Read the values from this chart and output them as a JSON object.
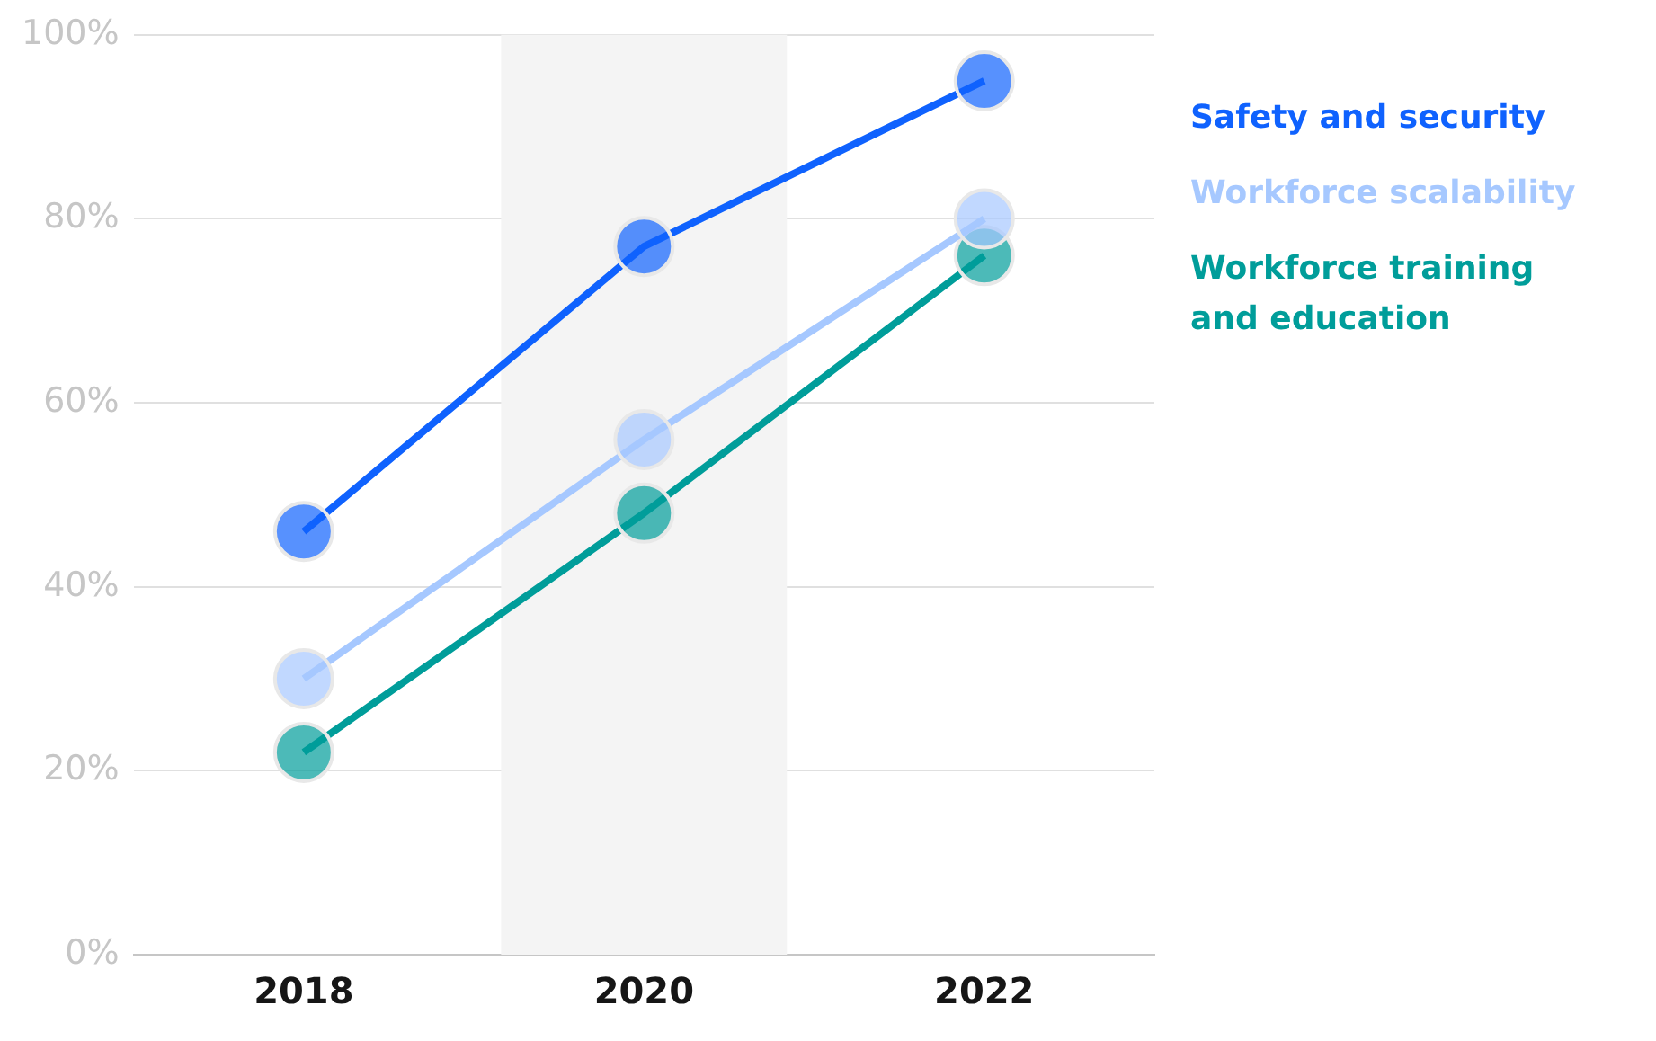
{
  "chart_data": {
    "type": "line",
    "categories": [
      "2018",
      "2020",
      "2022"
    ],
    "series": [
      {
        "name": "Safety and security",
        "color": "#0f62fe",
        "values": [
          46,
          77,
          95
        ]
      },
      {
        "name": "Workforce scalability",
        "color": "#a6c8ff",
        "values": [
          30,
          56,
          80
        ]
      },
      {
        "name": "Workforce training and education",
        "color": "#009d9a",
        "values": [
          22,
          48,
          76
        ]
      }
    ],
    "ylim": [
      0,
      100
    ],
    "yticks": [
      {
        "value": 0,
        "label": "0%"
      },
      {
        "value": 20,
        "label": "20%"
      },
      {
        "value": 40,
        "label": "40%"
      },
      {
        "value": 60,
        "label": "60%"
      },
      {
        "value": 80,
        "label": "80%"
      },
      {
        "value": 100,
        "label": "100%"
      }
    ],
    "bands": [
      {
        "axis": "x",
        "from": "2020",
        "to": "2020",
        "color": "#f4f4f4"
      }
    ],
    "grid": "y",
    "legend": "right",
    "marker": "circle",
    "line_style": "solid"
  }
}
